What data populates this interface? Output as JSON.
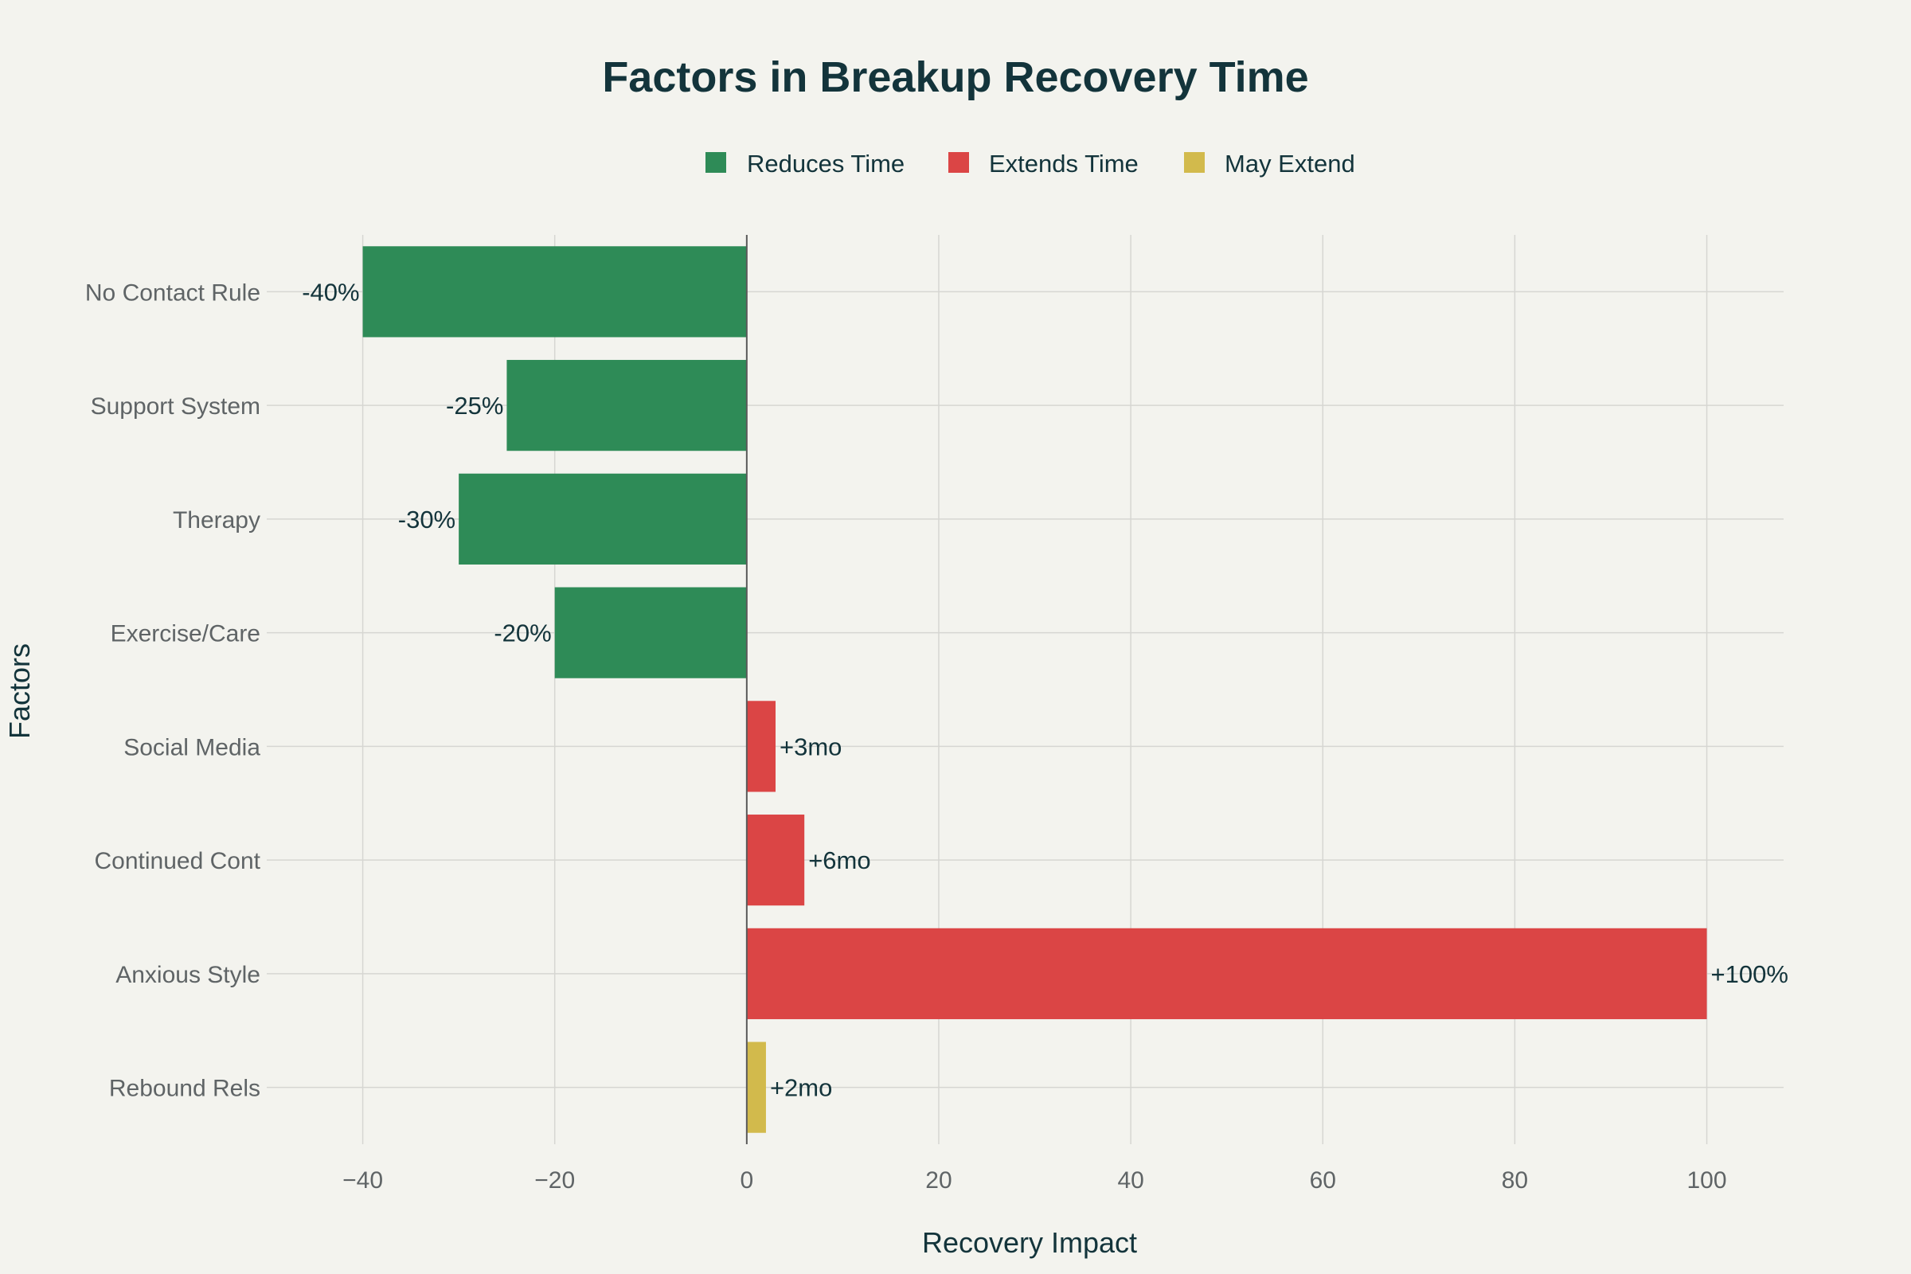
{
  "chart_data": {
    "type": "bar",
    "orientation": "horizontal",
    "title": "Factors in Breakup Recovery Time",
    "xlabel": "Recovery Impact",
    "ylabel": "Factors",
    "xlim": [
      -50,
      108
    ],
    "xticks": [
      -40,
      -20,
      0,
      20,
      40,
      60,
      80,
      100
    ],
    "xtick_labels": [
      "−40",
      "−20",
      "0",
      "20",
      "40",
      "60",
      "80",
      "100"
    ],
    "grid": true,
    "legend_position": "top-center",
    "legend": [
      {
        "name": "Reduces Time",
        "color": "#2e8b57"
      },
      {
        "name": "Extends Time",
        "color": "#db4545"
      },
      {
        "name": "May Extend",
        "color": "#d2ba4c"
      }
    ],
    "categories": [
      "No Contact Rule",
      "Support System",
      "Therapy",
      "Exercise/Care",
      "Social Media",
      "Continued Cont",
      "Anxious Style",
      "Rebound Rels"
    ],
    "values": [
      -40,
      -25,
      -30,
      -20,
      3,
      6,
      100,
      2
    ],
    "groups": [
      "Reduces Time",
      "Reduces Time",
      "Reduces Time",
      "Reduces Time",
      "Extends Time",
      "Extends Time",
      "Extends Time",
      "May Extend"
    ],
    "data_labels": [
      "-40%",
      "-25%",
      "-30%",
      "-20%",
      "+3mo",
      "+6mo",
      "+100%",
      "+2mo"
    ]
  }
}
